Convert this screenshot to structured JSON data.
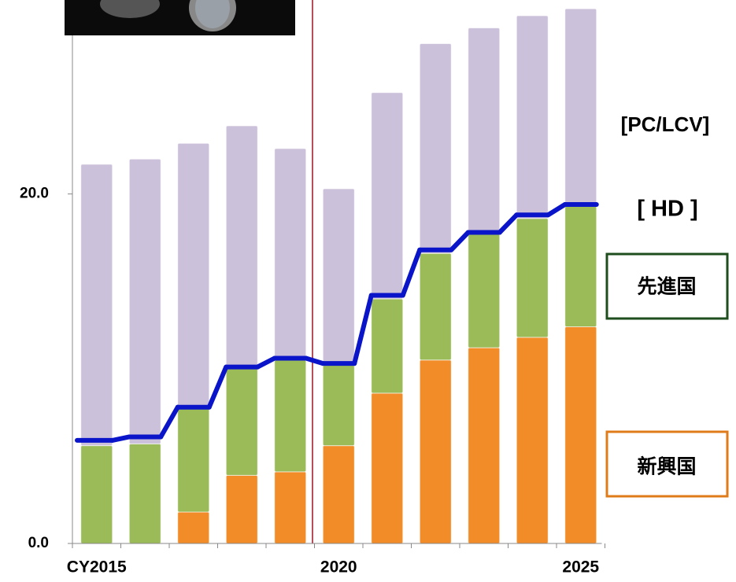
{
  "chart_data": {
    "type": "bar",
    "stacked": true,
    "categories": [
      "CY2015",
      null,
      null,
      null,
      null,
      "2020",
      null,
      null,
      null,
      null,
      "2025"
    ],
    "series": [
      {
        "name": "新興国",
        "color": "#f28c28",
        "values": [
          0,
          0,
          1.8,
          3.9,
          4.1,
          5.6,
          8.6,
          10.5,
          11.2,
          11.8,
          12.4
        ]
      },
      {
        "name": "先進国",
        "color": "#9bbb59",
        "values": [
          5.6,
          5.7,
          5.9,
          6.2,
          6.4,
          4.6,
          5.4,
          6.1,
          6.5,
          6.8,
          6.9
        ]
      },
      {
        "name": "[PC/LCV]",
        "color": "#ccc1da",
        "values": [
          16.1,
          16.3,
          15.2,
          13.8,
          12.1,
          10.1,
          11.8,
          12.0,
          11.8,
          11.6,
          11.3
        ]
      },
      {
        "name": "[ HD ]",
        "type": "line",
        "color": "#0a14c8",
        "values": [
          5.9,
          6.1,
          7.8,
          10.1,
          10.6,
          10.3,
          14.2,
          16.8,
          17.8,
          18.8,
          19.4
        ]
      }
    ],
    "ylim": [
      0,
      31.1
    ],
    "yticks": [
      {
        "value": 0,
        "label": "0.0"
      },
      {
        "value": 20,
        "label": "20.0"
      }
    ]
  }
}
